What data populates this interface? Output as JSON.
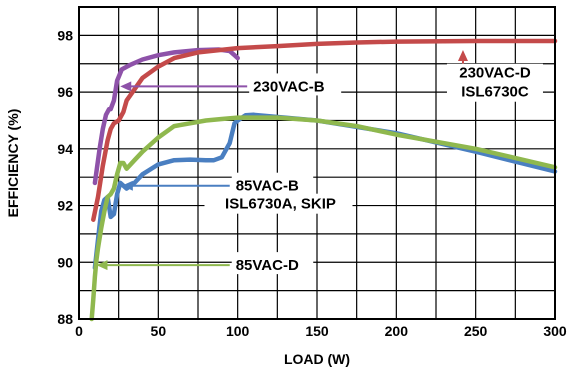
{
  "chart_data": {
    "type": "line",
    "title": "",
    "xlabel": "LOAD  (W)",
    "ylabel": "EFFICIENCY (%)",
    "xlim": [
      0,
      300
    ],
    "ylim": [
      88,
      99
    ],
    "x_ticks": [
      0,
      50,
      100,
      150,
      200,
      250,
      300
    ],
    "y_ticks": [
      88,
      90,
      92,
      94,
      96,
      98
    ],
    "grid": true,
    "legend": "none",
    "series": [
      {
        "name": "230VAC-B",
        "color": "#8e52a9",
        "x": [
          10,
          13,
          15,
          17,
          19,
          20,
          22,
          24,
          27,
          32,
          40,
          50,
          60,
          75,
          88,
          95,
          98,
          100
        ],
        "y": [
          92.8,
          94.0,
          94.7,
          95.2,
          95.4,
          95.4,
          95.7,
          96.4,
          96.8,
          96.95,
          97.15,
          97.3,
          97.4,
          97.48,
          97.5,
          97.45,
          97.3,
          97.2
        ]
      },
      {
        "name": "230VAC-D ISL6730C",
        "color": "#c44a4a",
        "x": [
          9,
          12,
          15,
          18,
          20,
          22,
          25,
          28,
          30,
          35,
          40,
          50,
          60,
          75,
          100,
          125,
          150,
          175,
          200,
          250,
          300
        ],
        "y": [
          91.5,
          92.3,
          93.4,
          94.3,
          94.7,
          94.9,
          95.0,
          95.3,
          95.7,
          96.1,
          96.5,
          96.9,
          97.2,
          97.4,
          97.55,
          97.62,
          97.7,
          97.75,
          97.78,
          97.8,
          97.8
        ]
      },
      {
        "name": "85VAC-B ISL6730A, SKIP",
        "color": "#4a7fc1",
        "x": [
          10,
          12,
          14,
          16,
          18,
          20,
          22,
          24,
          26,
          28,
          30,
          35,
          40,
          50,
          60,
          70,
          80,
          85,
          90,
          95,
          98,
          100,
          105,
          110,
          120,
          150,
          200,
          250,
          300
        ],
        "y": [
          89.8,
          90.8,
          91.8,
          92.2,
          92.3,
          91.6,
          91.7,
          92.4,
          92.8,
          92.7,
          92.6,
          92.8,
          93.1,
          93.45,
          93.6,
          93.62,
          93.6,
          93.6,
          93.7,
          94.2,
          94.9,
          95.0,
          95.18,
          95.2,
          95.15,
          95.0,
          94.55,
          93.9,
          93.2
        ]
      },
      {
        "name": "85VAC-D",
        "color": "#8fb84e",
        "x": [
          8,
          9,
          10,
          11,
          12,
          14,
          16,
          18,
          20,
          22,
          24,
          26,
          28,
          30,
          35,
          40,
          50,
          60,
          70,
          80,
          90,
          100,
          110,
          125,
          150,
          175,
          200,
          250,
          300
        ],
        "y": [
          88.0,
          88.7,
          89.5,
          90.1,
          90.5,
          91.2,
          91.8,
          92.3,
          92.4,
          92.6,
          93.1,
          93.5,
          93.5,
          93.3,
          93.6,
          93.9,
          94.4,
          94.8,
          94.9,
          95.0,
          95.05,
          95.1,
          95.1,
          95.1,
          95.0,
          94.8,
          94.5,
          94.0,
          93.35
        ]
      }
    ],
    "annotations": [
      {
        "text": "230VAC-B",
        "series": 0,
        "x_from": 106,
        "x_to": 26,
        "y": 96.2
      },
      {
        "text": "230VAC-D",
        "series": 1,
        "x_from": 242,
        "x_to": 242,
        "y": 97.0,
        "y_to": 97.8,
        "text_line2": "ISL6730C"
      },
      {
        "text": "85VAC-B",
        "series": 2,
        "x_from": 95,
        "x_to": 27,
        "y": 92.7,
        "text_line2": "ISL6730A, SKIP"
      },
      {
        "text": "85VAC-D",
        "series": 3,
        "x_from": 95,
        "x_to": 11,
        "y": 89.9
      }
    ]
  }
}
